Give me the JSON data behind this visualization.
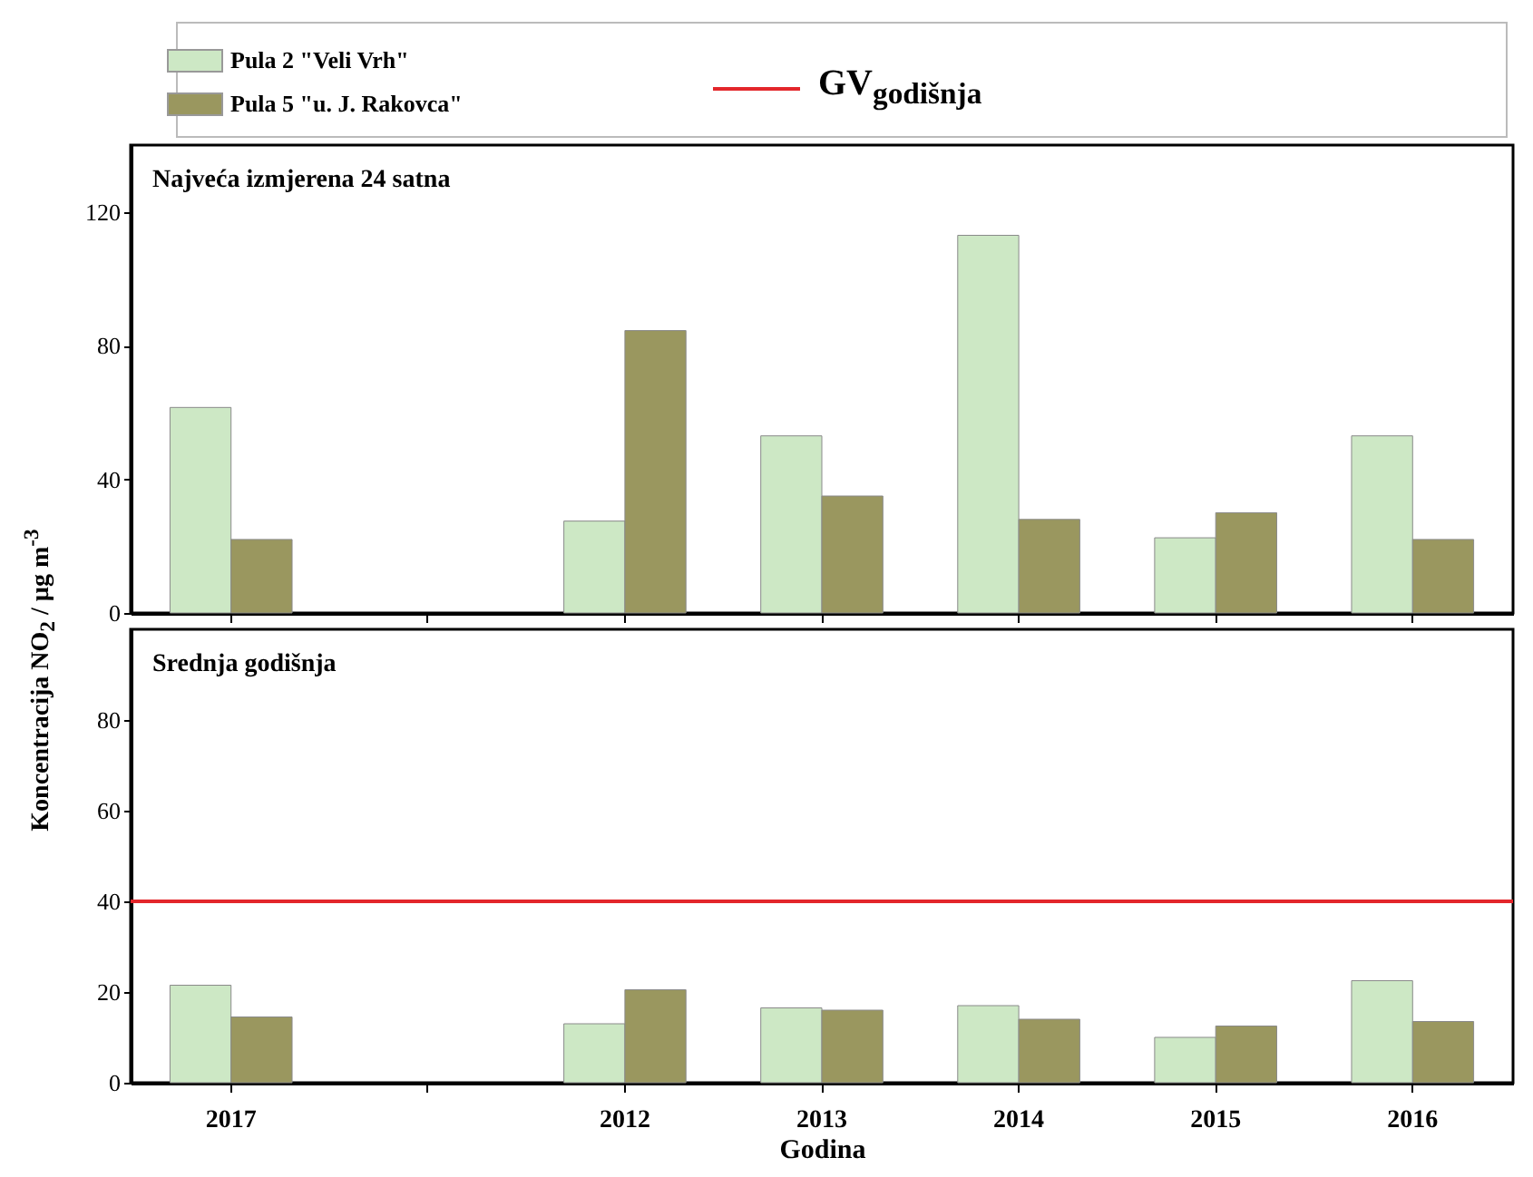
{
  "chart_data": [
    {
      "type": "bar",
      "title": "Najveća izmjerena 24 satna",
      "ylabel": "Koncentracija NO$_{2}$ / µg m$^{-3}$",
      "categories": [
        "2017",
        null,
        "2012",
        "2013",
        "2014",
        "2015",
        "2016"
      ],
      "series": [
        {
          "name": "Pula 2 \"Veli Vrh\"",
          "color": "#cde8c5",
          "values": [
            61.5,
            null,
            27.5,
            53,
            113,
            22.5,
            53
          ]
        },
        {
          "name": "Pula 5 \"u. J. Rakovca\"",
          "color": "#9a975f",
          "values": [
            22,
            null,
            84.5,
            35,
            28,
            30,
            22
          ]
        }
      ],
      "ylim": [
        0,
        140
      ],
      "yticks": [
        0,
        40,
        80,
        120
      ],
      "legend": "top",
      "tick_labels": "y"
    },
    {
      "type": "bar",
      "title": "Srednja godišnja",
      "xlabel": "Godina",
      "categories": [
        "2017",
        null,
        "2012",
        "2013",
        "2014",
        "2015",
        "2016"
      ],
      "series": [
        {
          "color": "#cde8c5",
          "values": [
            21.5,
            null,
            13,
            16.5,
            17,
            10,
            22.5
          ]
        },
        {
          "color": "#9a975f",
          "values": [
            14.5,
            null,
            20.5,
            16,
            14,
            12.5,
            13.5
          ]
        }
      ],
      "ylim": [
        0,
        100
      ],
      "yticks": [
        0,
        20,
        40,
        60,
        80
      ],
      "ref_lines": [
        {
          "axis": "y",
          "value": 40,
          "label": "GV$_{godišnja}$",
          "color": "#e3262b"
        }
      ]
    }
  ]
}
